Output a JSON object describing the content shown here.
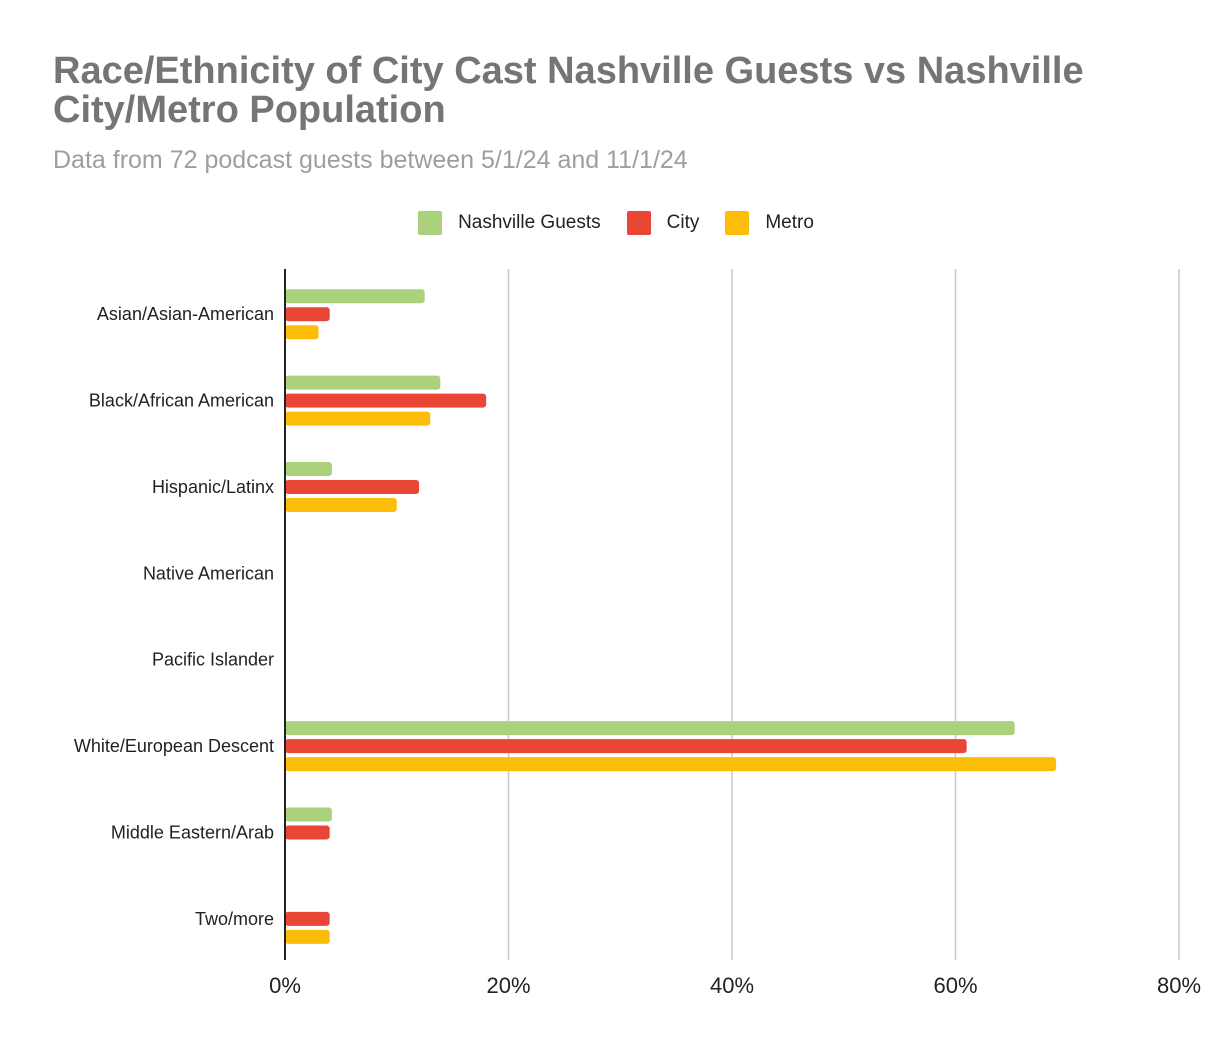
{
  "chart_data": {
    "type": "bar",
    "orientation": "horizontal",
    "title": "Race/Ethnicity of City Cast Nashville Guests vs Nashville City/Metro Population",
    "subtitle": "Data from 72 podcast guests between 5/1/24 and 11/1/24",
    "categories": [
      "Asian/Asian-American",
      "Black/African American",
      "Hispanic/Latinx",
      "Native American",
      "Pacific Islander",
      "White/European Descent",
      "Middle Eastern/Arab",
      "Two/more"
    ],
    "series": [
      {
        "name": "Nashville Guests",
        "color": "#abd17c",
        "values": [
          12.5,
          13.9,
          4.2,
          0,
          0,
          65.3,
          4.2,
          0
        ]
      },
      {
        "name": "City",
        "color": "#ea4637",
        "values": [
          4,
          18,
          12,
          0,
          0,
          61,
          4,
          4
        ]
      },
      {
        "name": "Metro",
        "color": "#fbbd07",
        "values": [
          3,
          13,
          10,
          0,
          0,
          69,
          0,
          4
        ]
      }
    ],
    "xlim": [
      0,
      80
    ],
    "xticks": [
      0,
      20,
      40,
      60,
      80
    ],
    "tick_format": "%",
    "grid": true,
    "legend_position": "top"
  }
}
